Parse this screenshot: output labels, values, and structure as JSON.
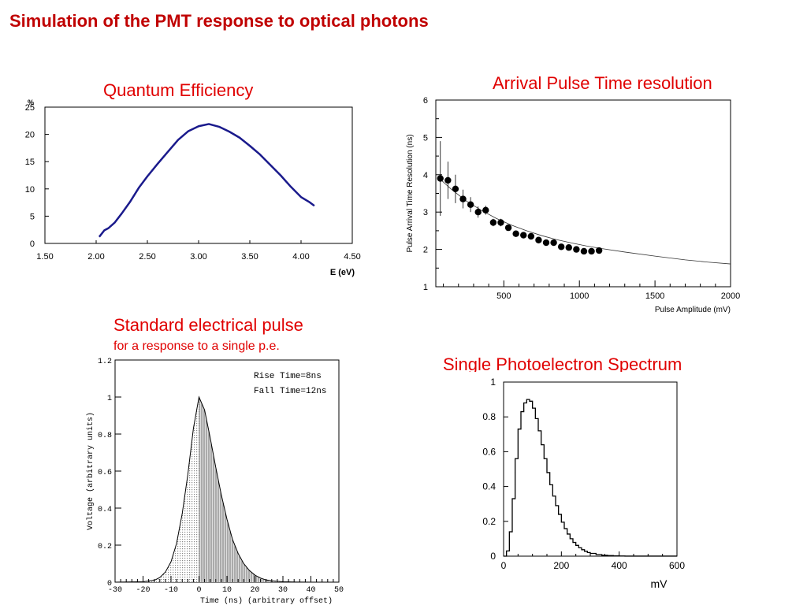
{
  "slide": {
    "title": "Simulation of the PMT response to optical photons"
  },
  "panels": {
    "qe": {
      "title": "Quantum Efficiency"
    },
    "timing": {
      "title": "Arrival Pulse Time resolution"
    },
    "pulse": {
      "title": "Standard electrical pulse",
      "subtitle": "for a response to a single p.e."
    },
    "spe": {
      "title": "Single Photoelectron Spectrum"
    }
  },
  "chart_data": [
    {
      "id": "qe",
      "type": "line",
      "title": "Quantum Efficiency",
      "xlabel": "E (eV)",
      "ylabel": "%",
      "xlim": [
        1.5,
        4.5
      ],
      "ylim": [
        0,
        25
      ],
      "xticks": [
        "1.50",
        "2.00",
        "2.50",
        "3.00",
        "3.50",
        "4.00",
        "4.50"
      ],
      "yticks": [
        "0",
        "5",
        "10",
        "15",
        "20",
        "25"
      ],
      "line_color": "#1a1a8c",
      "x": [
        2.03,
        2.08,
        2.12,
        2.18,
        2.25,
        2.33,
        2.42,
        2.5,
        2.6,
        2.7,
        2.8,
        2.9,
        3.0,
        3.1,
        3.2,
        3.3,
        3.4,
        3.5,
        3.6,
        3.7,
        3.8,
        3.9,
        4.0,
        4.08,
        4.13
      ],
      "y": [
        1.2,
        2.4,
        2.8,
        3.8,
        5.5,
        7.6,
        10.3,
        12.3,
        14.6,
        16.8,
        19.0,
        20.6,
        21.5,
        21.9,
        21.4,
        20.5,
        19.4,
        17.9,
        16.3,
        14.4,
        12.5,
        10.4,
        8.5,
        7.6,
        6.9
      ]
    },
    {
      "id": "timing",
      "type": "scatter",
      "title": "Arrival Pulse Time resolution",
      "xlabel": "Pulse Amplitude (mV)",
      "ylabel": "Pulse Arrival Time Resolution (ns)",
      "xlim": [
        50,
        2000
      ],
      "ylim": [
        1,
        6
      ],
      "xticks": [
        "500",
        "1000",
        "1500",
        "2000"
      ],
      "yticks": [
        "1",
        "2",
        "3",
        "4",
        "5",
        "6"
      ],
      "points": {
        "x": [
          80,
          130,
          180,
          230,
          280,
          330,
          380,
          430,
          480,
          530,
          580,
          630,
          680,
          730,
          780,
          830,
          880,
          930,
          980,
          1030,
          1080,
          1130
        ],
        "y": [
          3.9,
          3.85,
          3.62,
          3.35,
          3.2,
          3.0,
          3.05,
          2.72,
          2.72,
          2.58,
          2.42,
          2.38,
          2.35,
          2.25,
          2.18,
          2.18,
          2.07,
          2.05,
          2.0,
          1.95,
          1.95,
          1.97
        ],
        "err": [
          1.0,
          0.5,
          0.38,
          0.25,
          0.2,
          0.15,
          0.12,
          0.1,
          0.1,
          0.08,
          0.08,
          0.07,
          0.07,
          0.06,
          0.06,
          0.06,
          0.06,
          0.05,
          0.05,
          0.05,
          0.05,
          0.05
        ]
      },
      "fit": {
        "x": [
          60,
          150,
          250,
          350,
          450,
          550,
          650,
          750,
          850,
          950,
          1050,
          1150,
          1300,
          1500,
          1700,
          1850,
          2000
        ],
        "y": [
          3.95,
          3.62,
          3.3,
          3.05,
          2.83,
          2.65,
          2.5,
          2.37,
          2.26,
          2.17,
          2.09,
          2.02,
          1.93,
          1.82,
          1.72,
          1.66,
          1.61
        ]
      }
    },
    {
      "id": "pulse",
      "type": "area",
      "xlabel": "Time (ns)  (arbitrary offset)",
      "ylabel": "Voltage (arbitrary units)",
      "xlim": [
        -30,
        50
      ],
      "ylim": [
        0,
        1.2
      ],
      "xticks": [
        "-30",
        "-20",
        "-10",
        "0",
        "10",
        "20",
        "30",
        "40",
        "50"
      ],
      "yticks": [
        "0",
        "0.2",
        "0.4",
        "0.6",
        "0.8",
        "1",
        "1.2"
      ],
      "annotations": [
        "Rise Time=8ns",
        "Fall Time=12ns"
      ],
      "x": [
        -30,
        -20,
        -16,
        -14,
        -12,
        -10,
        -8,
        -6,
        -4,
        -2,
        0,
        2,
        4,
        6,
        8,
        10,
        12,
        14,
        16,
        18,
        20,
        22,
        24,
        26,
        28,
        30,
        35,
        40,
        50
      ],
      "y": [
        0,
        0.002,
        0.01,
        0.025,
        0.055,
        0.11,
        0.21,
        0.37,
        0.58,
        0.83,
        1.0,
        0.93,
        0.78,
        0.62,
        0.47,
        0.34,
        0.23,
        0.155,
        0.1,
        0.063,
        0.038,
        0.022,
        0.012,
        0.007,
        0.004,
        0.002,
        0.0005,
        0,
        0
      ]
    },
    {
      "id": "spe",
      "type": "line",
      "title": "Single Photoelectron Spectrum",
      "xlabel": "mV",
      "xlim": [
        0,
        600
      ],
      "ylim": [
        0,
        1
      ],
      "xticks": [
        "0",
        "200",
        "400",
        "600"
      ],
      "yticks": [
        "0",
        "0.2",
        "0.4",
        "0.6",
        "0.8",
        "1"
      ],
      "x": [
        0,
        10,
        20,
        30,
        40,
        50,
        60,
        70,
        80,
        90,
        100,
        110,
        120,
        130,
        140,
        150,
        160,
        170,
        180,
        190,
        200,
        210,
        220,
        230,
        240,
        250,
        260,
        270,
        280,
        290,
        300,
        320,
        340,
        360,
        380,
        400,
        420,
        600
      ],
      "y": [
        0.0,
        0.03,
        0.14,
        0.33,
        0.56,
        0.73,
        0.83,
        0.88,
        0.9,
        0.89,
        0.85,
        0.79,
        0.72,
        0.64,
        0.56,
        0.48,
        0.41,
        0.345,
        0.29,
        0.24,
        0.195,
        0.158,
        0.127,
        0.1,
        0.079,
        0.062,
        0.048,
        0.037,
        0.028,
        0.021,
        0.016,
        0.009,
        0.005,
        0.003,
        0.0015,
        0.0008,
        0.0003,
        0.0
      ]
    }
  ]
}
